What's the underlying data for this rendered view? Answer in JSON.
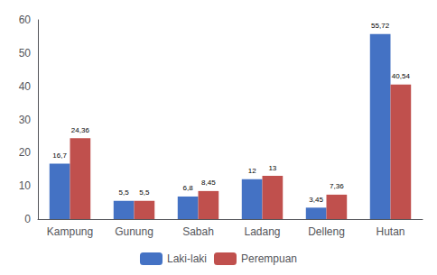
{
  "chart_data": {
    "type": "bar",
    "categories": [
      "Kampung",
      "Gunung",
      "Sabah",
      "Ladang",
      "Delleng",
      "Hutan"
    ],
    "series": [
      {
        "name": "Laki-laki",
        "color": "#4472c4",
        "values": [
          16.7,
          5.5,
          6.8,
          12,
          3.45,
          55.72
        ],
        "value_labels": [
          "16,7",
          "5,5",
          "6,8",
          "12",
          "3,45",
          "55,72"
        ]
      },
      {
        "name": "Perempuan",
        "color": "#c0504d",
        "values": [
          24.36,
          5.5,
          8.45,
          13,
          7.36,
          40.54
        ],
        "value_labels": [
          "24,36",
          "5,5",
          "8,45",
          "13",
          "7,36",
          "40,54"
        ]
      }
    ],
    "ylim": [
      0,
      60
    ],
    "yticks": [
      0,
      10,
      20,
      30,
      40,
      50,
      60
    ],
    "grid": false,
    "legend": "bottom",
    "data_labels": true
  }
}
